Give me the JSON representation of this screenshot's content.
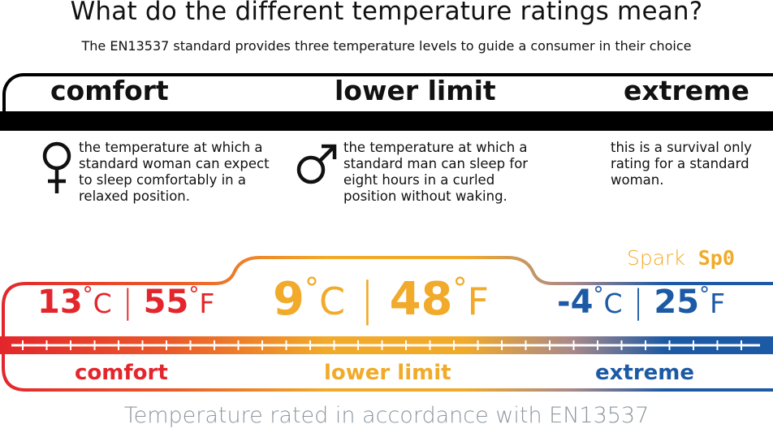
{
  "header": {
    "title": "What do the different temperature ratings mean?",
    "subtitle": "The EN13537 standard provides three temperature levels to guide a consumer in their choice"
  },
  "levels": [
    {
      "label": "comfort",
      "description": "the temperature at which a standard woman can expect to sleep comfortably in a relaxed position.",
      "icon": "female-symbol-icon"
    },
    {
      "label": "lower limit",
      "description": "the temperature at which a standard man can sleep for eight hours in a curled position without waking.",
      "icon": "male-symbol-icon"
    },
    {
      "label": "extreme",
      "description": "this is a survival only rating for a standard woman."
    }
  ],
  "brand": {
    "name": "Spark",
    "model": "Sp0"
  },
  "ratings": {
    "comfort": {
      "celsius": "13",
      "fahrenheit": "55",
      "label": "comfort",
      "color": "#e3262c"
    },
    "lower_limit": {
      "celsius": "9",
      "fahrenheit": "48",
      "label": "lower limit",
      "color": "#f1aa2a"
    },
    "extreme": {
      "celsius": "-4",
      "fahrenheit": "25",
      "label": "extreme",
      "color": "#1d5aa5"
    },
    "units": {
      "deg": "°",
      "c": "C",
      "f": "F",
      "sep": "|"
    }
  },
  "footer": "Temperature rated in accordance with EN13537"
}
